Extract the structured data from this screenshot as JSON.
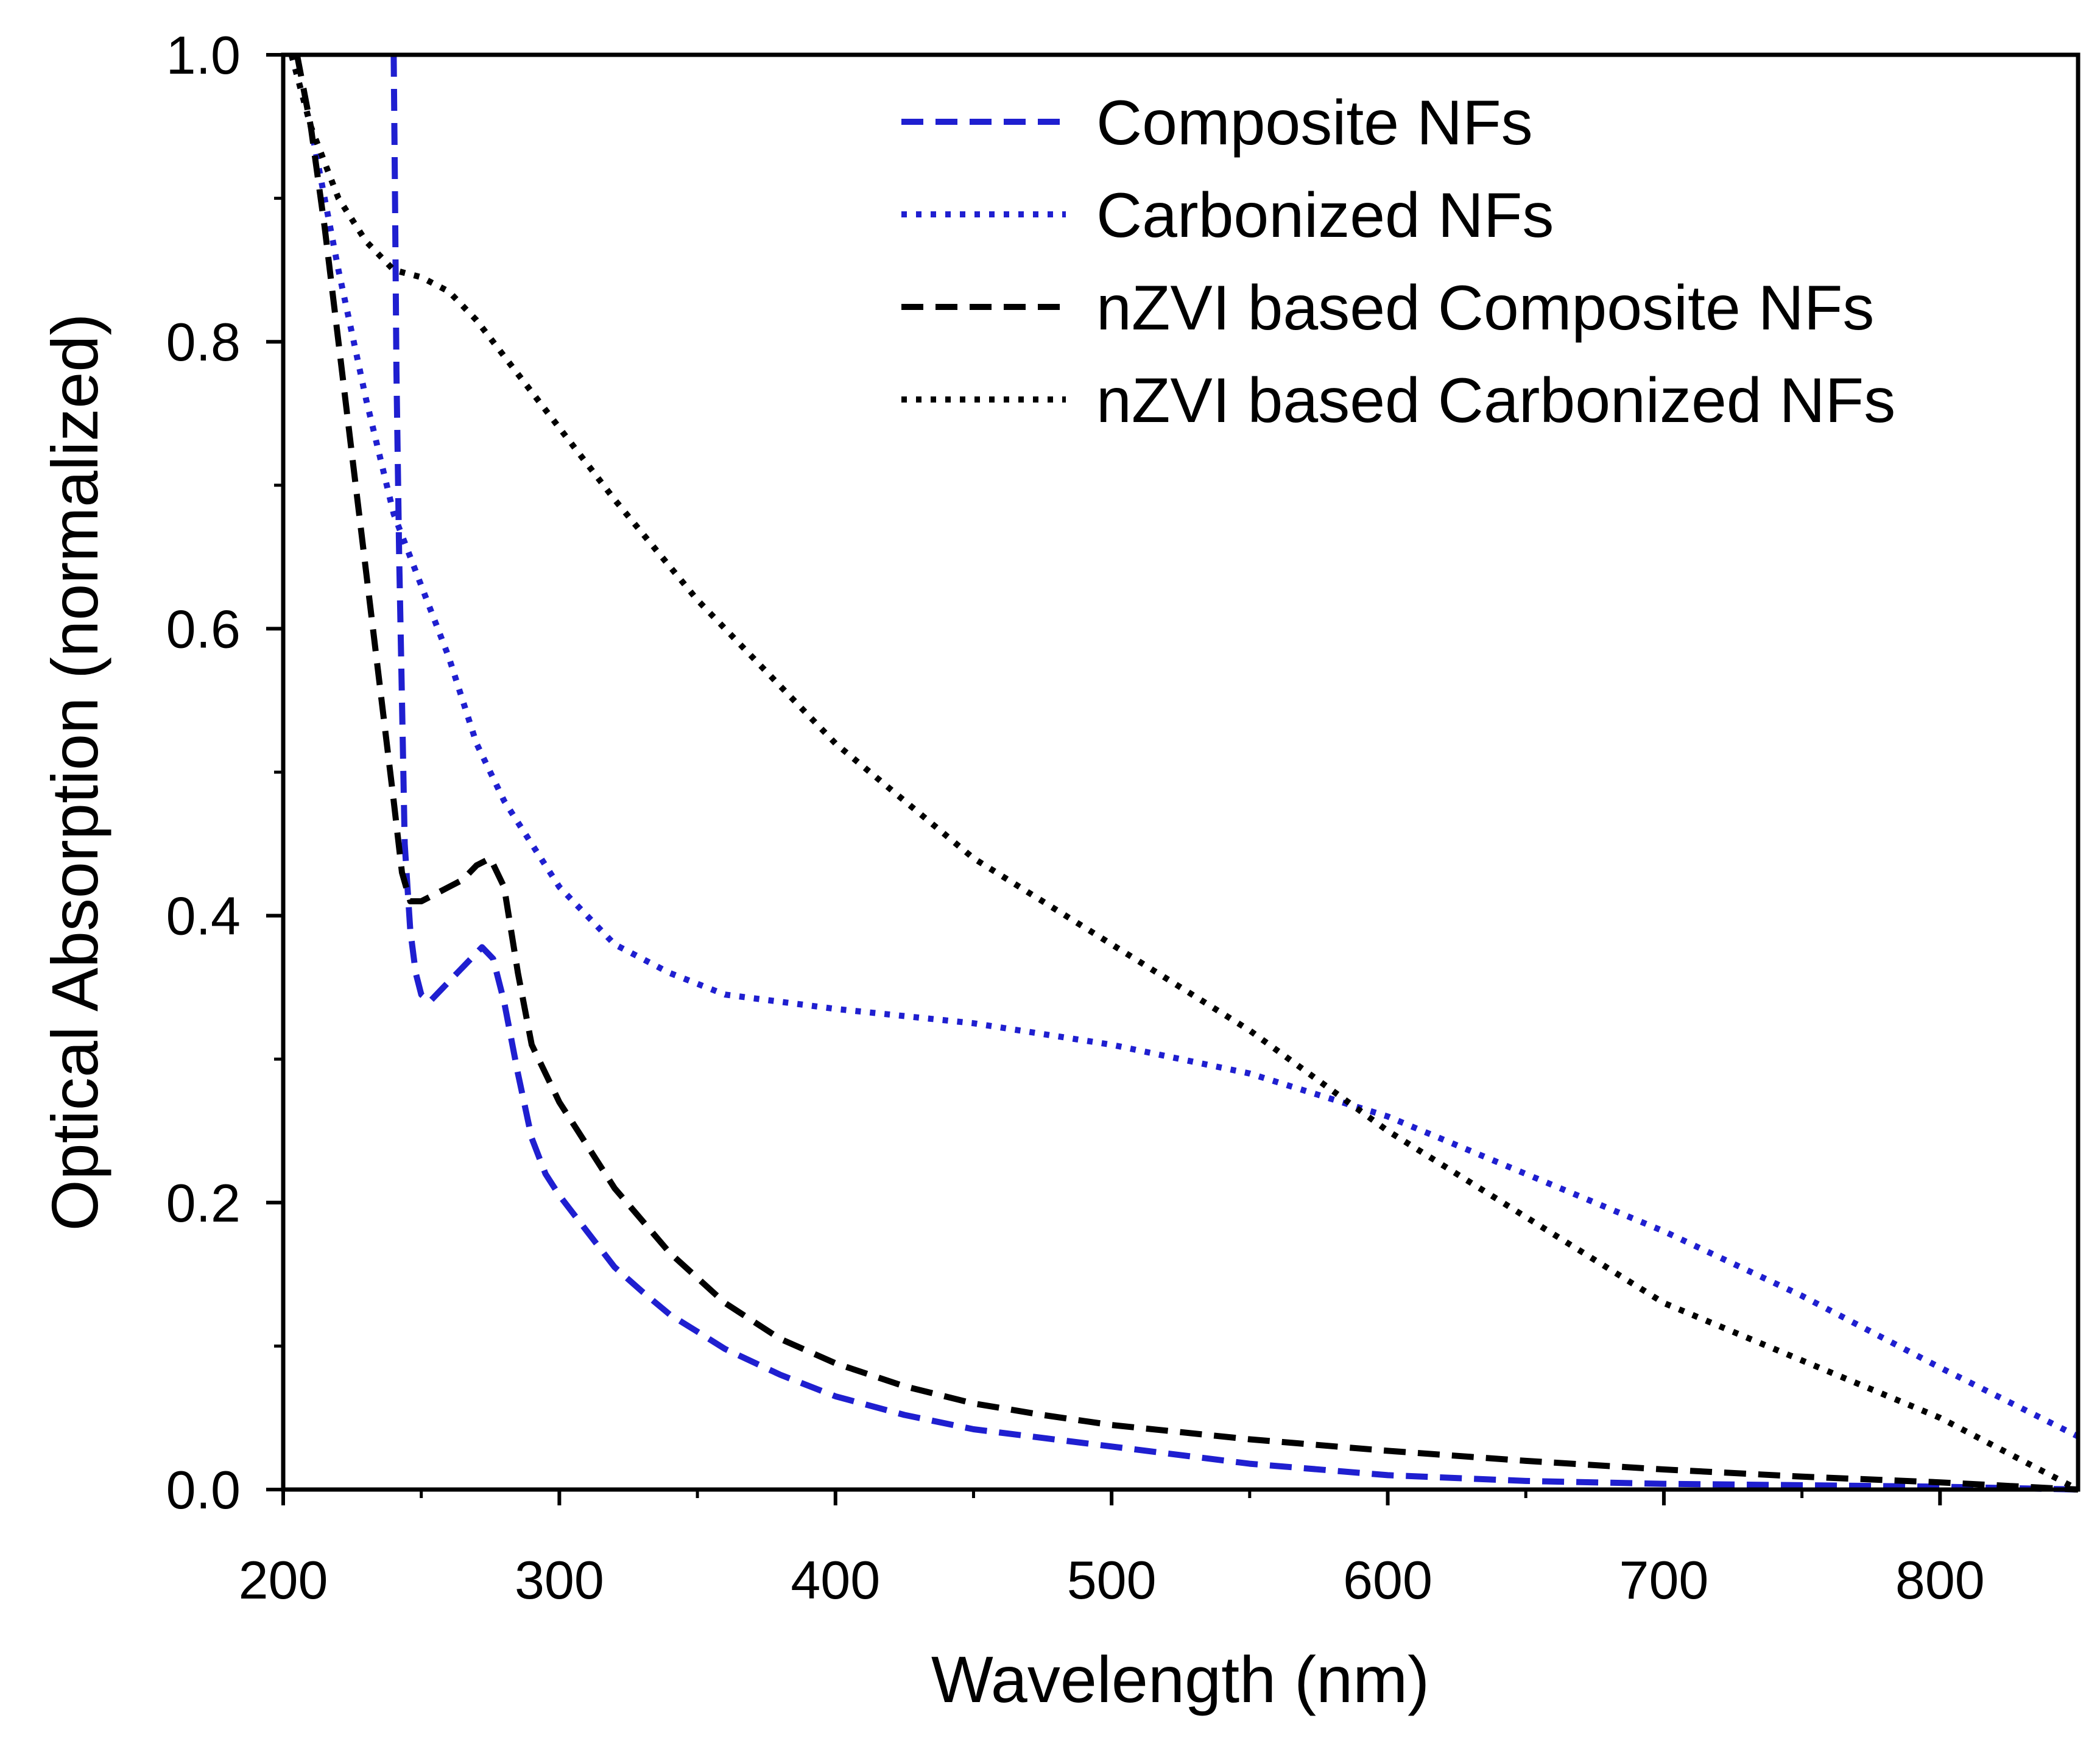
{
  "chart_data": {
    "type": "line",
    "title": "",
    "xlabel": "Wavelength (nm)",
    "ylabel": "Optical Absorption (normalized)",
    "xlim": [
      200,
      850
    ],
    "ylim": [
      0.0,
      1.0
    ],
    "x_ticks": [
      200,
      300,
      400,
      500,
      600,
      700,
      800
    ],
    "x_tick_labels": [
      "200",
      "300",
      "400",
      "500",
      "600",
      "700",
      "800"
    ],
    "y_ticks": [
      0.0,
      0.2,
      0.4,
      0.6,
      0.8,
      1.0
    ],
    "y_tick_labels": [
      "0.0",
      "0.2",
      "0.4",
      "0.6",
      "0.8",
      "1.0"
    ],
    "grid": false,
    "legend_position": "top-right",
    "series": [
      {
        "name": "Composite NFs",
        "color": "#1f1fd0",
        "style": "dashed",
        "x": [
          240,
          240.5,
          241,
          242,
          243,
          244,
          246,
          248,
          250,
          253,
          258,
          263,
          268,
          272,
          276,
          280,
          285,
          290,
          295,
          300,
          310,
          320,
          330,
          340,
          350,
          360,
          380,
          400,
          425,
          450,
          475,
          500,
          550,
          600,
          650,
          700,
          750,
          800,
          850
        ],
        "y": [
          1.0,
          0.9,
          0.78,
          0.65,
          0.55,
          0.45,
          0.39,
          0.36,
          0.345,
          0.34,
          0.35,
          0.36,
          0.37,
          0.378,
          0.37,
          0.34,
          0.29,
          0.245,
          0.22,
          0.205,
          0.18,
          0.155,
          0.138,
          0.122,
          0.11,
          0.098,
          0.08,
          0.065,
          0.052,
          0.042,
          0.036,
          0.03,
          0.018,
          0.01,
          0.006,
          0.004,
          0.003,
          0.002,
          0.0
        ]
      },
      {
        "name": "Carbonized NFs",
        "color": "#1f1fd0",
        "style": "dotted",
        "x": [
          203,
          210,
          215,
          220,
          230,
          240,
          250,
          260,
          270,
          280,
          290,
          300,
          320,
          340,
          360,
          380,
          400,
          450,
          500,
          550,
          600,
          650,
          700,
          750,
          800,
          850
        ],
        "y": [
          1.0,
          0.95,
          0.9,
          0.85,
          0.76,
          0.68,
          0.63,
          0.58,
          0.52,
          0.48,
          0.45,
          0.42,
          0.38,
          0.36,
          0.345,
          0.34,
          0.335,
          0.325,
          0.31,
          0.29,
          0.26,
          0.22,
          0.18,
          0.135,
          0.085,
          0.037
        ]
      },
      {
        "name": "nZVI based Composite NFs",
        "color": "#000000",
        "style": "dashed",
        "x": [
          205,
          210,
          215,
          220,
          225,
          230,
          235,
          240,
          243,
          246,
          250,
          255,
          260,
          265,
          270,
          275,
          280,
          285,
          290,
          300,
          320,
          340,
          360,
          380,
          400,
          425,
          450,
          475,
          500,
          550,
          600,
          650,
          700,
          750,
          800,
          850
        ],
        "y": [
          1.0,
          0.95,
          0.88,
          0.8,
          0.72,
          0.64,
          0.56,
          0.48,
          0.43,
          0.41,
          0.41,
          0.415,
          0.42,
          0.425,
          0.435,
          0.44,
          0.42,
          0.36,
          0.31,
          0.27,
          0.21,
          0.165,
          0.13,
          0.105,
          0.088,
          0.072,
          0.06,
          0.052,
          0.045,
          0.035,
          0.027,
          0.02,
          0.014,
          0.009,
          0.005,
          0.0
        ]
      },
      {
        "name": "nZVI based Carbonized NFs",
        "color": "#000000",
        "style": "dotted",
        "x": [
          203,
          210,
          220,
          230,
          240,
          250,
          260,
          270,
          280,
          300,
          320,
          350,
          400,
          450,
          500,
          550,
          600,
          650,
          700,
          750,
          800,
          850
        ],
        "y": [
          1.0,
          0.95,
          0.9,
          0.87,
          0.85,
          0.845,
          0.835,
          0.815,
          0.79,
          0.74,
          0.69,
          0.62,
          0.52,
          0.44,
          0.38,
          0.32,
          0.25,
          0.19,
          0.13,
          0.09,
          0.05,
          0.0
        ]
      }
    ]
  }
}
